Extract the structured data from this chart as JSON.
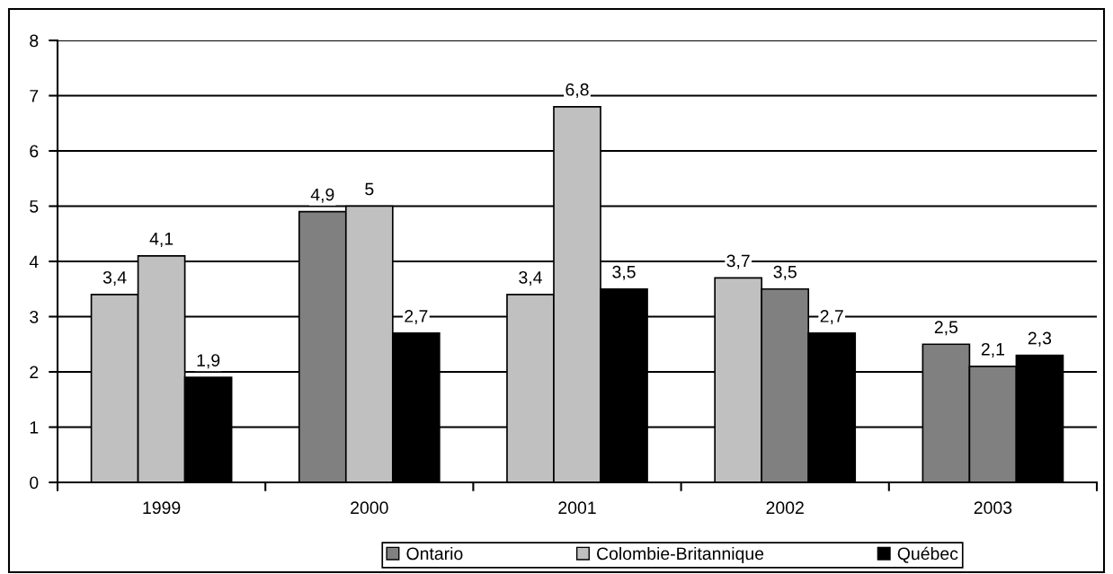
{
  "chart_data": {
    "type": "bar",
    "categories": [
      "1999",
      "2000",
      "2001",
      "2002",
      "2003"
    ],
    "series": [
      {
        "name": "Ontario",
        "color": "#808080",
        "colors": [
          "#c0c0c0",
          "#808080",
          "#c0c0c0",
          "#c0c0c0",
          "#808080"
        ],
        "values": [
          3.4,
          4.9,
          3.4,
          3.7,
          2.5
        ],
        "value_labels": [
          "3,4",
          "4,9",
          "3,4",
          "3,7",
          "2,5"
        ]
      },
      {
        "name": "Colombie-Britannique",
        "color": "#c0c0c0",
        "colors": [
          "#c0c0c0",
          "#c0c0c0",
          "#c0c0c0",
          "#808080",
          "#808080"
        ],
        "values": [
          4.1,
          5,
          6.8,
          3.5,
          2.1
        ],
        "value_labels": [
          "4,1",
          "5",
          "6,8",
          "3,5",
          "2,1"
        ]
      },
      {
        "name": "Québec",
        "color": "#000000",
        "values": [
          1.9,
          2.7,
          3.5,
          2.7,
          2.3
        ],
        "value_labels": [
          "1,9",
          "2,7",
          "3,5",
          "2,7",
          "2,3"
        ]
      }
    ],
    "ylim": [
      0,
      8
    ],
    "yticks": [
      0,
      1,
      2,
      3,
      4,
      5,
      6,
      7,
      8
    ],
    "grid": "y",
    "legend": "bottom"
  }
}
